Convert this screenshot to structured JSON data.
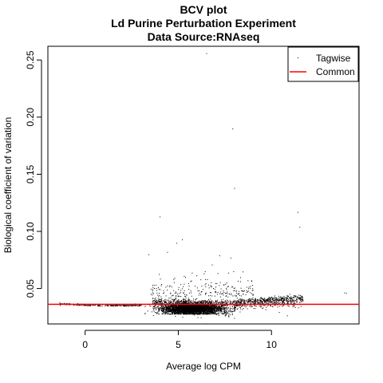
{
  "chart_data": {
    "type": "scatter",
    "title_lines": [
      "BCV plot",
      "Ld Purine Perturbation Experiment",
      "Data Source:RNAseq"
    ],
    "xlabel": "Average log CPM",
    "ylabel": "Biological coefficient of variation",
    "xlim": [
      -2.0,
      14.7
    ],
    "ylim": [
      0.019,
      0.262
    ],
    "x_ticks": [
      0,
      5,
      10
    ],
    "y_ticks": [
      0.05,
      0.1,
      0.15,
      0.2,
      0.25
    ],
    "x_tick_labels": [
      "0",
      "5",
      "10"
    ],
    "y_tick_labels": [
      "0.05",
      "0.10",
      "0.15",
      "0.20",
      "0.25"
    ],
    "common_bcv": 0.0362,
    "legend": {
      "placement": "top-right",
      "entries": [
        {
          "label": "Tagwise",
          "symbol": "point",
          "color": "#000000"
        },
        {
          "label": "Common",
          "symbol": "line",
          "color": "#ff0000"
        }
      ]
    },
    "grid": false,
    "outliers": [
      {
        "x": 6.5,
        "y": 0.256
      },
      {
        "x": 7.9,
        "y": 0.19
      },
      {
        "x": 8.0,
        "y": 0.138
      },
      {
        "x": 11.4,
        "y": 0.117
      },
      {
        "x": 11.5,
        "y": 0.104
      },
      {
        "x": 4.0,
        "y": 0.113
      },
      {
        "x": 5.2,
        "y": 0.093
      },
      {
        "x": 4.9,
        "y": 0.09
      },
      {
        "x": 3.4,
        "y": 0.08
      },
      {
        "x": 4.4,
        "y": 0.082
      },
      {
        "x": 7.2,
        "y": 0.079
      },
      {
        "x": 7.8,
        "y": 0.077
      },
      {
        "x": 6.8,
        "y": 0.071
      },
      {
        "x": 13.9,
        "y": 0.0465
      },
      {
        "x": 14.0,
        "y": 0.0462
      }
    ],
    "tagwise_cloud": {
      "description_free": true,
      "low_tail": [
        {
          "x": -1.4,
          "y": 0.037
        },
        {
          "x": -1.0,
          "y": 0.0365
        },
        {
          "x": -0.5,
          "y": 0.0362
        },
        {
          "x": 0.0,
          "y": 0.036
        },
        {
          "x": 0.5,
          "y": 0.0358
        },
        {
          "x": 1.0,
          "y": 0.0357
        },
        {
          "x": 1.5,
          "y": 0.0356
        },
        {
          "x": 2.0,
          "y": 0.0356
        },
        {
          "x": 2.5,
          "y": 0.0357
        },
        {
          "x": 3.0,
          "y": 0.0358
        }
      ],
      "dense_center": [
        5.7,
        0.033
      ],
      "x_range": [
        3.0,
        12.0
      ],
      "upper_trend": [
        {
          "x": 4.0,
          "y": 0.041
        },
        {
          "x": 5.0,
          "y": 0.041
        },
        {
          "x": 6.0,
          "y": 0.04
        },
        {
          "x": 7.0,
          "y": 0.039
        },
        {
          "x": 8.0,
          "y": 0.0395
        },
        {
          "x": 9.0,
          "y": 0.041
        },
        {
          "x": 10.0,
          "y": 0.042
        },
        {
          "x": 11.0,
          "y": 0.043
        },
        {
          "x": 11.7,
          "y": 0.044
        }
      ]
    }
  }
}
